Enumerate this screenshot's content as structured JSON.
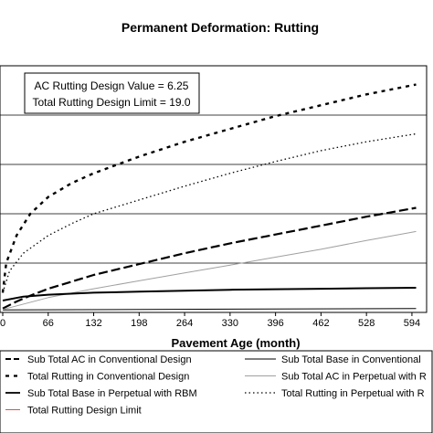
{
  "chart_data": {
    "type": "line",
    "title": "Permanent Deformation: Rutting",
    "xlabel": "Pavement Age (month)",
    "ylabel": "",
    "xlim": [
      0,
      610
    ],
    "ylim": [
      0,
      25
    ],
    "x_ticks": [
      0,
      66,
      132,
      198,
      264,
      330,
      396,
      462,
      528,
      594
    ],
    "y_grid_values": [
      5,
      10,
      15,
      20
    ],
    "grid": true,
    "legend_placement": "bottom",
    "annotation_lines": [
      "AC Rutting Design Value = 6.25",
      "Total Rutting Design Limit = 19.0"
    ],
    "series": [
      {
        "name": "Sub Total AC in Conventional Design",
        "style": "long-dash",
        "color": "#000000",
        "width": 2.2,
        "x": [
          0,
          20,
          40,
          66,
          132,
          198,
          264,
          330,
          396,
          462,
          528,
          600
        ],
        "y": [
          0.4,
          1.1,
          1.7,
          2.4,
          3.8,
          4.9,
          6.0,
          7.0,
          7.9,
          8.8,
          9.7,
          10.6
        ]
      },
      {
        "name": "Sub Total Base in Conventional Design",
        "style": "solid",
        "color": "#000000",
        "width": 1,
        "x": [
          0,
          600
        ],
        "y": [
          0.25,
          0.4
        ]
      },
      {
        "name": "Total Rutting in Conventional Design",
        "style": "dash",
        "color": "#000000",
        "width": 2.4,
        "x": [
          0,
          5,
          20,
          40,
          66,
          100,
          132,
          198,
          264,
          330,
          396,
          462,
          528,
          600
        ],
        "y": [
          2.0,
          5.0,
          7.8,
          10.0,
          11.7,
          13.1,
          14.1,
          15.8,
          17.3,
          18.6,
          19.9,
          21.0,
          22.1,
          23.1
        ]
      },
      {
        "name": "Sub Total AC in Perpetual with RBM",
        "style": "solid",
        "color": "#a0a0a0",
        "width": 1,
        "x": [
          0,
          66,
          132,
          198,
          264,
          330,
          396,
          462,
          528,
          600
        ],
        "y": [
          0.3,
          1.5,
          2.4,
          3.2,
          4.0,
          4.8,
          5.6,
          6.4,
          7.3,
          8.2
        ]
      },
      {
        "name": "Sub Total Base in Perpetual with RBM",
        "style": "solid",
        "color": "#000000",
        "width": 2,
        "x": [
          0,
          30,
          66,
          132,
          198,
          264,
          330,
          396,
          462,
          528,
          600
        ],
        "y": [
          1.2,
          1.6,
          1.8,
          2.0,
          2.1,
          2.2,
          2.3,
          2.35,
          2.4,
          2.45,
          2.5
        ]
      },
      {
        "name": "Total Rutting in Perpetual with RBM",
        "style": "dot",
        "color": "#000000",
        "width": 1.3,
        "x": [
          0,
          10,
          30,
          66,
          100,
          132,
          198,
          264,
          330,
          396,
          462,
          528,
          600
        ],
        "y": [
          2.0,
          4.2,
          6.0,
          7.8,
          9.0,
          10.0,
          11.4,
          12.8,
          14.1,
          15.3,
          16.4,
          17.3,
          18.1
        ]
      },
      {
        "name": "Total Rutting Design Limit",
        "style": "solid",
        "color": "#e05050",
        "width": 1,
        "x": [],
        "y": []
      }
    ],
    "legend_labels": [
      "Sub Total AC in Conventional Design",
      "Sub Total Base in Conventional",
      "Total Rutting in Conventional Design",
      "Sub Total AC in Perpetual with R",
      "Sub Total Base in Perpetual with RBM",
      "Total Rutting in Perpetual with R",
      "Total Rutting Design Limit"
    ]
  }
}
